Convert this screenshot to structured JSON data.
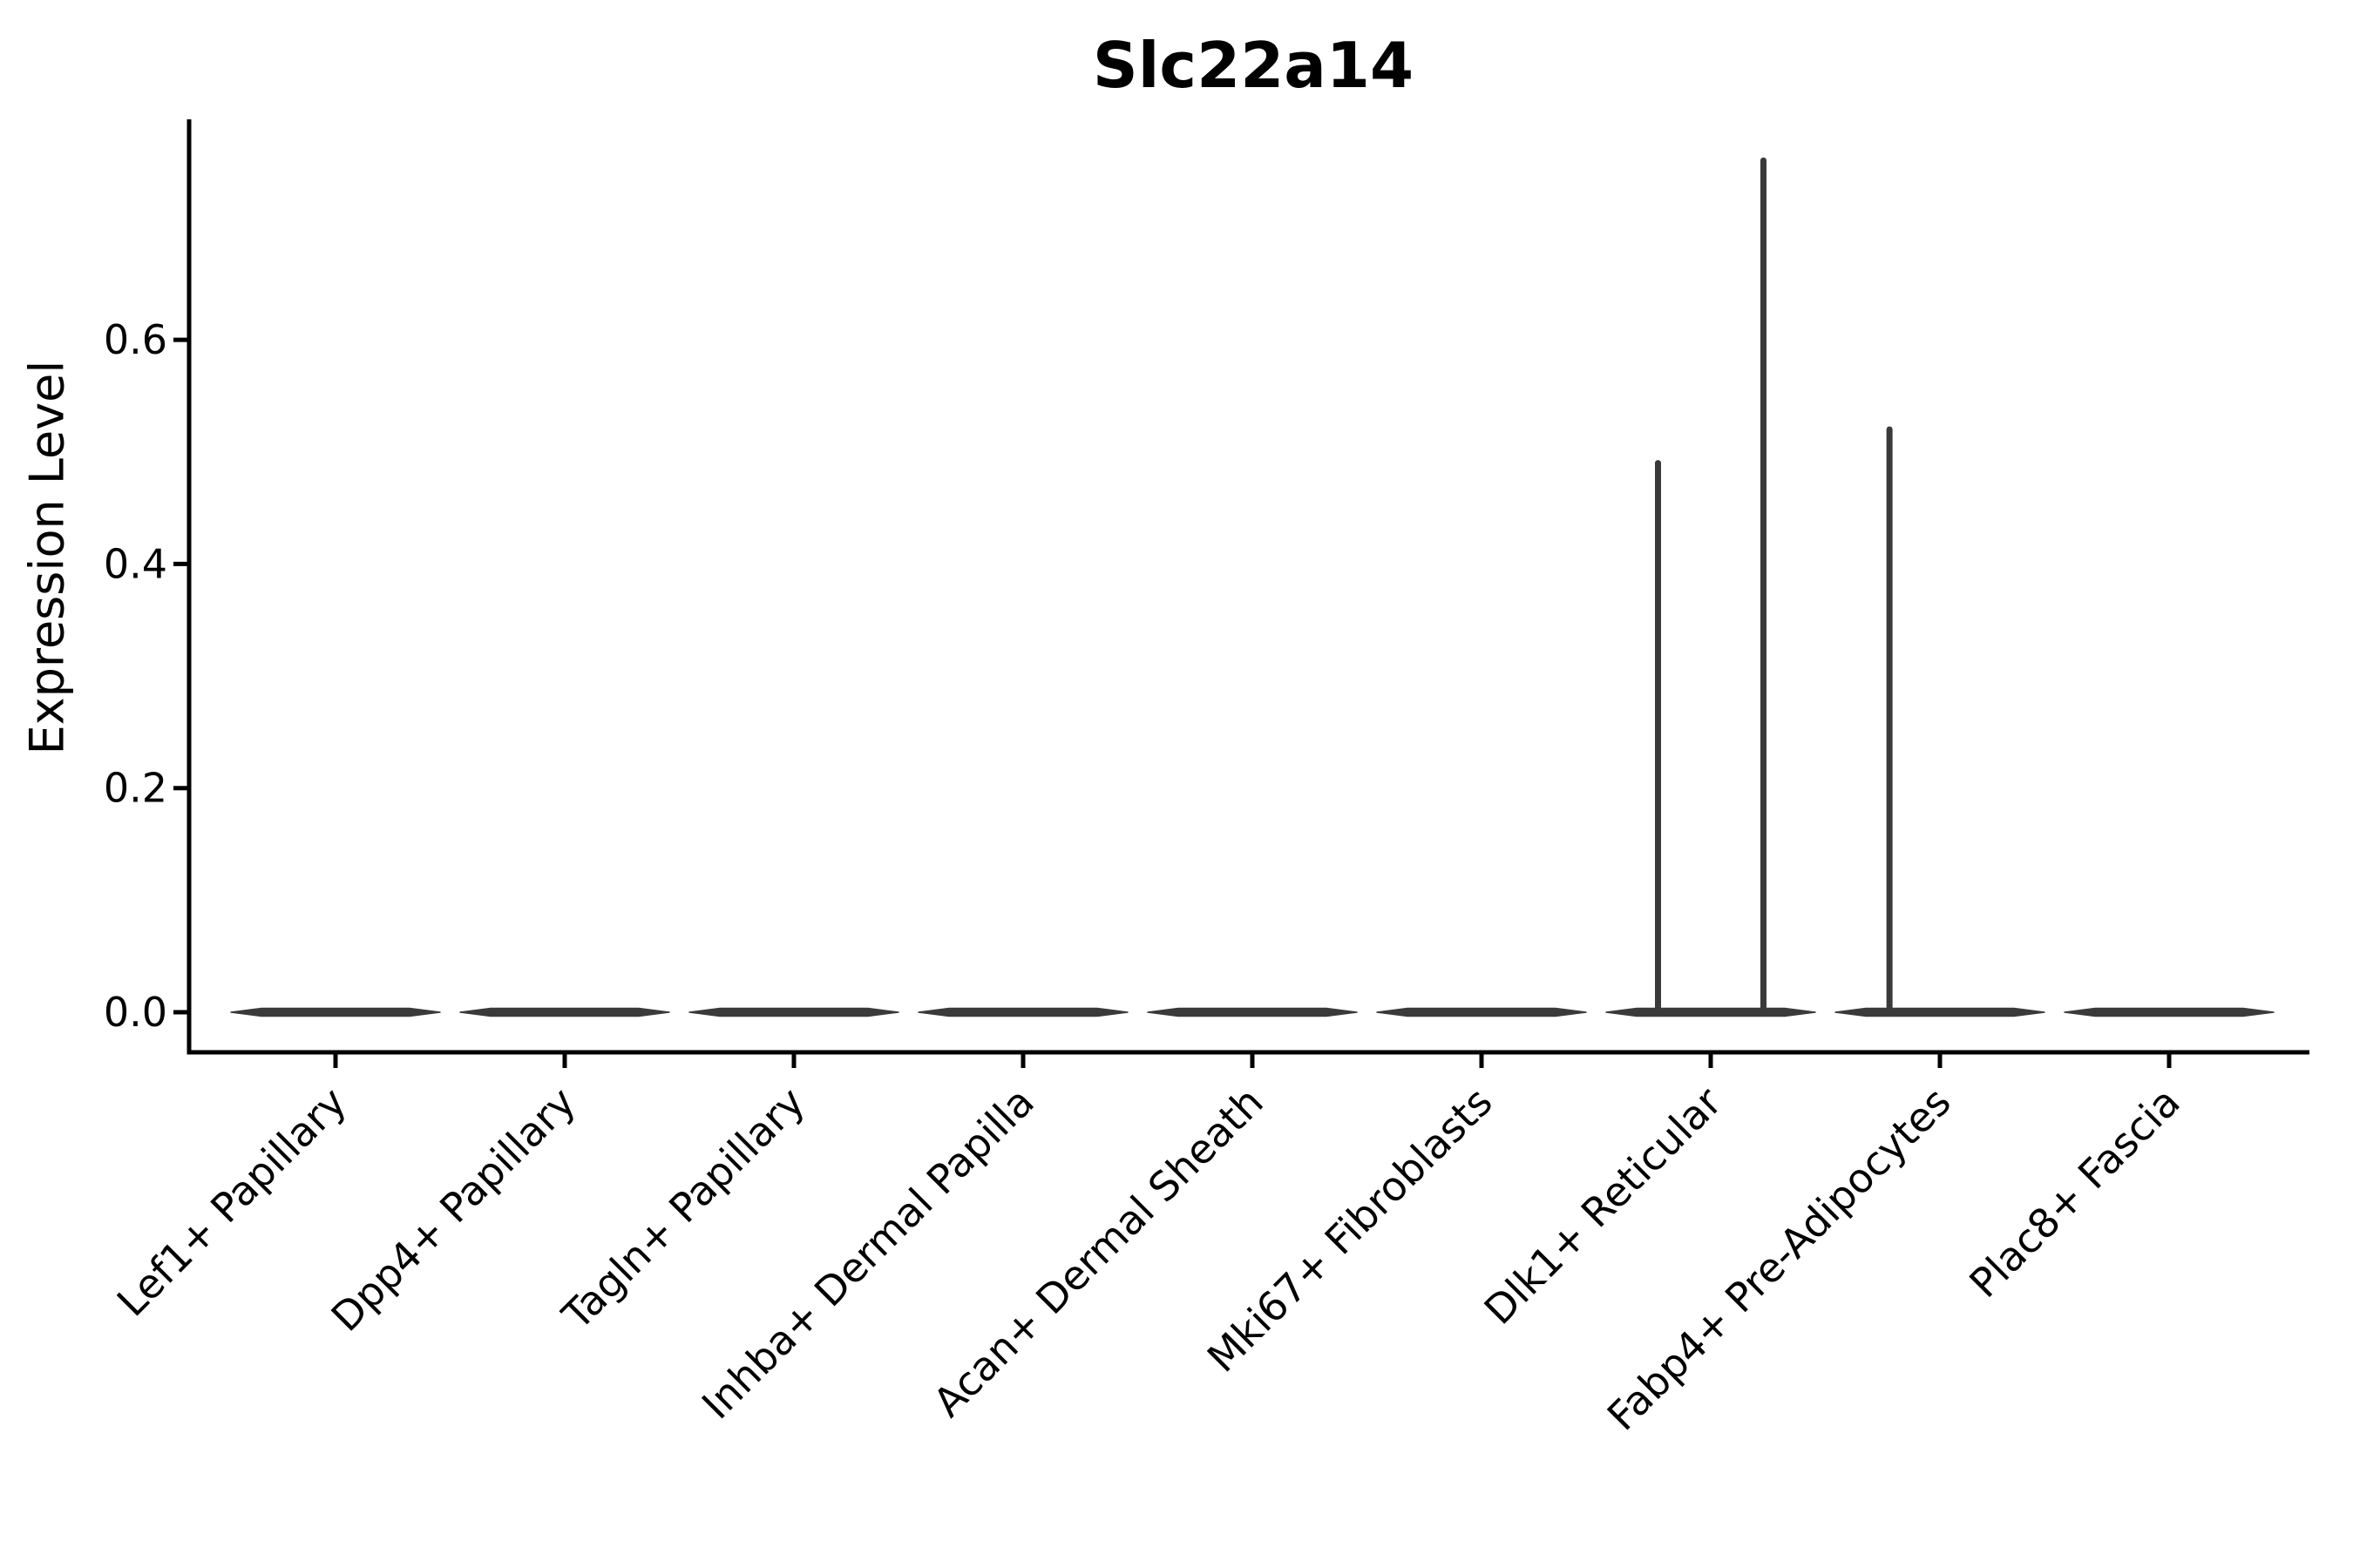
{
  "figure": {
    "title": "Slc22a14",
    "ylabel": "Expression Level"
  },
  "chart_data": {
    "type": "violin",
    "title": "Slc22a14",
    "xlabel": "",
    "ylabel": "Expression Level",
    "categories": [
      "Lef1+ Papillary",
      "Dpp4+ Papillary",
      "Tagln+ Papillary",
      "Inhba+ Dermal Papilla",
      "Acan+ Dermal Sheath",
      "Mki67+ Fibroblasts",
      "Dlk1+ Reticular",
      "Fabp4+ Pre-Adipocytes",
      "Plac8+ Fascia"
    ],
    "yticks": [
      0.0,
      0.2,
      0.4,
      0.6
    ],
    "ytick_labels": [
      "0.0",
      "0.2",
      "0.4",
      "0.6"
    ],
    "ylim": [
      -0.036,
      0.8
    ],
    "grid": false,
    "legend": false,
    "x_tick_rotation_deg": 45,
    "violins": [
      {
        "category": "Lef1+ Papillary",
        "baseline": 0.0,
        "max": 0.0,
        "spikes": []
      },
      {
        "category": "Dpp4+ Papillary",
        "baseline": 0.0,
        "max": 0.0,
        "spikes": []
      },
      {
        "category": "Tagln+ Papillary",
        "baseline": 0.0,
        "max": 0.0,
        "spikes": []
      },
      {
        "category": "Inhba+ Dermal Papilla",
        "baseline": 0.0,
        "max": 0.0,
        "spikes": []
      },
      {
        "category": "Acan+ Dermal Sheath",
        "baseline": 0.0,
        "max": 0.0,
        "spikes": []
      },
      {
        "category": "Mki67+ Fibroblasts",
        "baseline": 0.0,
        "max": 0.0,
        "spikes": []
      },
      {
        "category": "Dlk1+ Reticular",
        "baseline": 0.0,
        "max": 0.76,
        "spikes": [
          {
            "offset_frac": -0.23,
            "peak": 0.49
          },
          {
            "offset_frac": 0.23,
            "peak": 0.76
          }
        ]
      },
      {
        "category": "Fabp4+ Pre-Adipocytes",
        "baseline": 0.0,
        "max": 0.52,
        "spikes": [
          {
            "offset_frac": -0.22,
            "peak": 0.52
          }
        ]
      },
      {
        "category": "Plac8+ Fascia",
        "baseline": 0.0,
        "max": 0.0,
        "spikes": []
      }
    ],
    "violin_half_width_frac": 0.46,
    "colors": {
      "violin": "#3a3a3a",
      "axis": "#000000",
      "text": "#000000",
      "background": "#ffffff"
    }
  }
}
